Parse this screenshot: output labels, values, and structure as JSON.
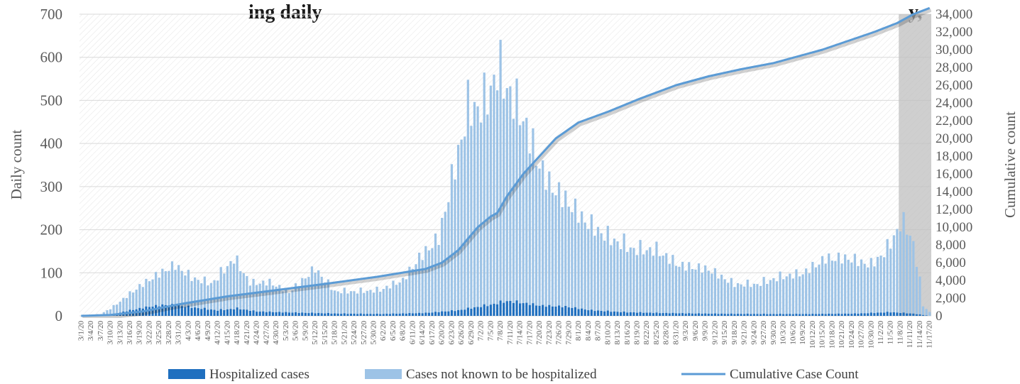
{
  "chart_data": {
    "type": "bar",
    "title": "ing daily",
    "title_tail": "y,",
    "ylabel": "Daily count",
    "y2label": "Cumulative count",
    "ylim": [
      0,
      700
    ],
    "y2lim": [
      0,
      34000
    ],
    "yticks": [
      "0",
      "100",
      "200",
      "300",
      "400",
      "500",
      "600",
      "700"
    ],
    "y2ticks": [
      "0",
      "2,000",
      "4,000",
      "6,000",
      "8,000",
      "10,000",
      "12,000",
      "14,000",
      "16,000",
      "18,000",
      "20,000",
      "22,000",
      "24,000",
      "26,000",
      "28,000",
      "30,000",
      "32,000",
      "34,000"
    ],
    "x_start": "2020-03-01",
    "x_end": "2020-11-17",
    "x_tick_every_days": 3,
    "shaded_from": "2020-11-08",
    "grid": true,
    "legend_position": "bottom",
    "colors": {
      "hospitalized": "#1f6fbf",
      "not_hospitalized": "#9dc3e6",
      "cumulative": "#5b9bd5",
      "shade": "#bfbfbf"
    },
    "series": [
      {
        "name": "Hospitalized cases",
        "kind": "bar",
        "values_at": [
          [
            "2020-03-01",
            0
          ],
          [
            "2020-03-10",
            3
          ],
          [
            "2020-03-16",
            15
          ],
          [
            "2020-03-22",
            25
          ],
          [
            "2020-03-27",
            30
          ],
          [
            "2020-03-31",
            28
          ],
          [
            "2020-04-05",
            22
          ],
          [
            "2020-04-12",
            15
          ],
          [
            "2020-04-18",
            20
          ],
          [
            "2020-04-24",
            12
          ],
          [
            "2020-05-01",
            10
          ],
          [
            "2020-05-10",
            8
          ],
          [
            "2020-05-20",
            6
          ],
          [
            "2020-06-01",
            5
          ],
          [
            "2020-06-15",
            8
          ],
          [
            "2020-06-25",
            15
          ],
          [
            "2020-07-05",
            30
          ],
          [
            "2020-07-10",
            40
          ],
          [
            "2020-07-15",
            35
          ],
          [
            "2020-07-20",
            28
          ],
          [
            "2020-07-28",
            25
          ],
          [
            "2020-08-05",
            15
          ],
          [
            "2020-08-15",
            10
          ],
          [
            "2020-08-25",
            8
          ],
          [
            "2020-09-10",
            6
          ],
          [
            "2020-09-25",
            5
          ],
          [
            "2020-10-10",
            5
          ],
          [
            "2020-10-25",
            6
          ],
          [
            "2020-11-05",
            10
          ],
          [
            "2020-11-12",
            6
          ],
          [
            "2020-11-17",
            0
          ]
        ]
      },
      {
        "name": "Cases not known to be hospitalized",
        "kind": "bar",
        "values_at": [
          [
            "2020-03-01",
            0
          ],
          [
            "2020-03-07",
            3
          ],
          [
            "2020-03-13",
            30
          ],
          [
            "2020-03-19",
            60
          ],
          [
            "2020-03-26",
            90
          ],
          [
            "2020-03-30",
            108
          ],
          [
            "2020-04-04",
            80
          ],
          [
            "2020-04-10",
            70
          ],
          [
            "2020-04-17",
            135
          ],
          [
            "2020-04-22",
            75
          ],
          [
            "2020-04-28",
            80
          ],
          [
            "2020-05-04",
            55
          ],
          [
            "2020-05-12",
            120
          ],
          [
            "2020-05-18",
            60
          ],
          [
            "2020-05-25",
            60
          ],
          [
            "2020-06-01",
            65
          ],
          [
            "2020-06-08",
            90
          ],
          [
            "2020-06-13",
            150
          ],
          [
            "2020-06-19",
            200
          ],
          [
            "2020-06-24",
            390
          ],
          [
            "2020-06-28",
            540
          ],
          [
            "2020-07-03",
            540
          ],
          [
            "2020-07-07",
            630
          ],
          [
            "2020-07-11",
            560
          ],
          [
            "2020-07-15",
            500
          ],
          [
            "2020-07-19",
            400
          ],
          [
            "2020-07-23",
            330
          ],
          [
            "2020-07-28",
            290
          ],
          [
            "2020-08-03",
            240
          ],
          [
            "2020-08-10",
            200
          ],
          [
            "2020-08-18",
            170
          ],
          [
            "2020-08-25",
            170
          ],
          [
            "2020-09-01",
            130
          ],
          [
            "2020-09-10",
            120
          ],
          [
            "2020-09-18",
            80
          ],
          [
            "2020-09-25",
            80
          ],
          [
            "2020-10-02",
            100
          ],
          [
            "2020-10-09",
            110
          ],
          [
            "2020-10-16",
            150
          ],
          [
            "2020-10-23",
            150
          ],
          [
            "2020-10-30",
            130
          ],
          [
            "2020-11-04",
            170
          ],
          [
            "2020-11-08",
            240
          ],
          [
            "2020-11-10",
            230
          ],
          [
            "2020-11-12",
            190
          ],
          [
            "2020-11-14",
            90
          ],
          [
            "2020-11-15",
            25
          ],
          [
            "2020-11-17",
            10
          ]
        ]
      },
      {
        "name": "Cumulative Case Count",
        "kind": "line",
        "axis": "right",
        "points": [
          [
            "2020-03-01",
            0
          ],
          [
            "2020-03-10",
            100
          ],
          [
            "2020-03-20",
            500
          ],
          [
            "2020-03-31",
            1300
          ],
          [
            "2020-04-15",
            2200
          ],
          [
            "2020-04-30",
            2900
          ],
          [
            "2020-05-15",
            3600
          ],
          [
            "2020-05-31",
            4400
          ],
          [
            "2020-06-15",
            5300
          ],
          [
            "2020-06-20",
            6000
          ],
          [
            "2020-06-25",
            7400
          ],
          [
            "2020-07-01",
            10000
          ],
          [
            "2020-07-05",
            11200
          ],
          [
            "2020-07-07",
            11600
          ],
          [
            "2020-07-10",
            13500
          ],
          [
            "2020-07-15",
            16000
          ],
          [
            "2020-07-20",
            18000
          ],
          [
            "2020-07-25",
            20000
          ],
          [
            "2020-08-01",
            21800
          ],
          [
            "2020-08-10",
            23000
          ],
          [
            "2020-08-20",
            24500
          ],
          [
            "2020-08-31",
            26000
          ],
          [
            "2020-09-10",
            27000
          ],
          [
            "2020-09-20",
            27800
          ],
          [
            "2020-09-30",
            28500
          ],
          [
            "2020-10-15",
            30000
          ],
          [
            "2020-10-31",
            32000
          ],
          [
            "2020-11-07",
            33000
          ],
          [
            "2020-11-12",
            34000
          ],
          [
            "2020-11-17",
            34700
          ]
        ]
      }
    ]
  }
}
